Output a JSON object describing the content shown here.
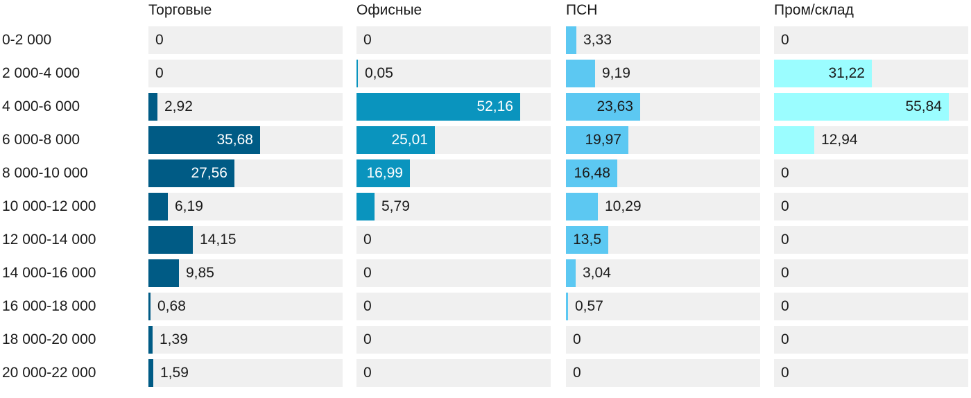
{
  "chart_data": {
    "type": "bar",
    "categories": [
      "0-2 000",
      "2 000-4 000",
      "4 000-6 000",
      "6 000-8 000",
      "8 000-10 000",
      "10 000-12 000",
      "12 000-14 000",
      "14 000-16 000",
      "16 000-18 000",
      "18 000-20 000",
      "20 000-22 000"
    ],
    "series": [
      {
        "name": "Торговые",
        "color": "#005b85",
        "text_inside": "#ffffff",
        "values": [
          0,
          0,
          2.92,
          35.68,
          27.56,
          6.19,
          14.15,
          9.85,
          0.68,
          1.39,
          1.59
        ],
        "labels": [
          "0",
          "0",
          "2,92",
          "35,68",
          "27,56",
          "6,19",
          "14,15",
          "9,85",
          "0,68",
          "1,39",
          "1,59"
        ]
      },
      {
        "name": "Офисные",
        "color": "#0a94be",
        "text_inside": "#ffffff",
        "values": [
          0,
          0.05,
          52.16,
          25.01,
          16.99,
          5.79,
          0,
          0,
          0,
          0,
          0
        ],
        "labels": [
          "0",
          "0,05",
          "52,16",
          "25,01",
          "16,99",
          "5,79",
          "0",
          "0",
          "0",
          "0",
          "0"
        ]
      },
      {
        "name": "ПСН",
        "color": "#5cc8f2",
        "text_inside": "#1a1a1a",
        "values": [
          3.33,
          9.19,
          23.63,
          19.97,
          16.48,
          10.29,
          13.5,
          3.04,
          0.57,
          0,
          0
        ],
        "labels": [
          "3,33",
          "9,19",
          "23,63",
          "19,97",
          "16,48",
          "10,29",
          "13,5",
          "3,04",
          "0,57",
          "0",
          "0"
        ]
      },
      {
        "name": "Пром/склад",
        "color": "#9bfdff",
        "text_inside": "#1a1a1a",
        "values": [
          0,
          31.22,
          55.84,
          12.94,
          0,
          0,
          0,
          0,
          0,
          0,
          0
        ],
        "labels": [
          "0",
          "31,22",
          "55,84",
          "12,94",
          "0",
          "0",
          "0",
          "0",
          "0",
          "0",
          "0"
        ]
      }
    ],
    "grid": false,
    "legend": "none"
  }
}
